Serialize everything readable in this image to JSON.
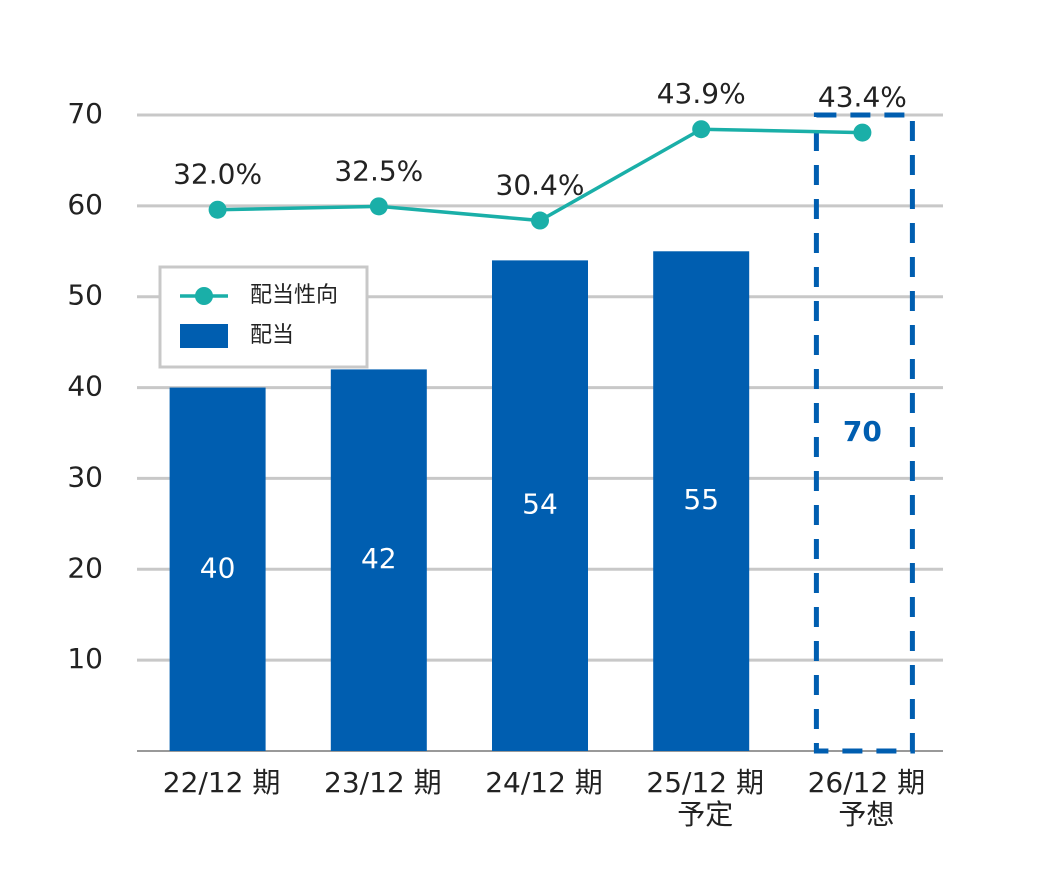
{
  "chart_data": {
    "type": "combo",
    "categories": [
      "22/12 期",
      "23/12 期",
      "24/12 期",
      "25/12 期\n予定",
      "26/12 期\n予想"
    ],
    "series": [
      {
        "name": "配当性向",
        "type": "line",
        "axis": "y2",
        "color": "#1aafa8",
        "values": [
          32.0,
          32.5,
          30.4,
          43.9,
          43.4
        ],
        "value_labels": [
          "32.0%",
          "32.5%",
          "30.4%",
          "43.9%",
          "43.4%"
        ]
      },
      {
        "name": "配当",
        "type": "bar",
        "color": "#005eb0",
        "values": [
          40,
          42,
          54,
          55,
          70
        ],
        "dashed": [
          false,
          false,
          false,
          false,
          true
        ]
      }
    ],
    "ylim": [
      0,
      70
    ],
    "yticks": [
      10,
      20,
      30,
      40,
      50,
      60,
      70
    ],
    "y2lim": [
      -48,
      46
    ],
    "grid": true,
    "legend": "upper-left"
  }
}
